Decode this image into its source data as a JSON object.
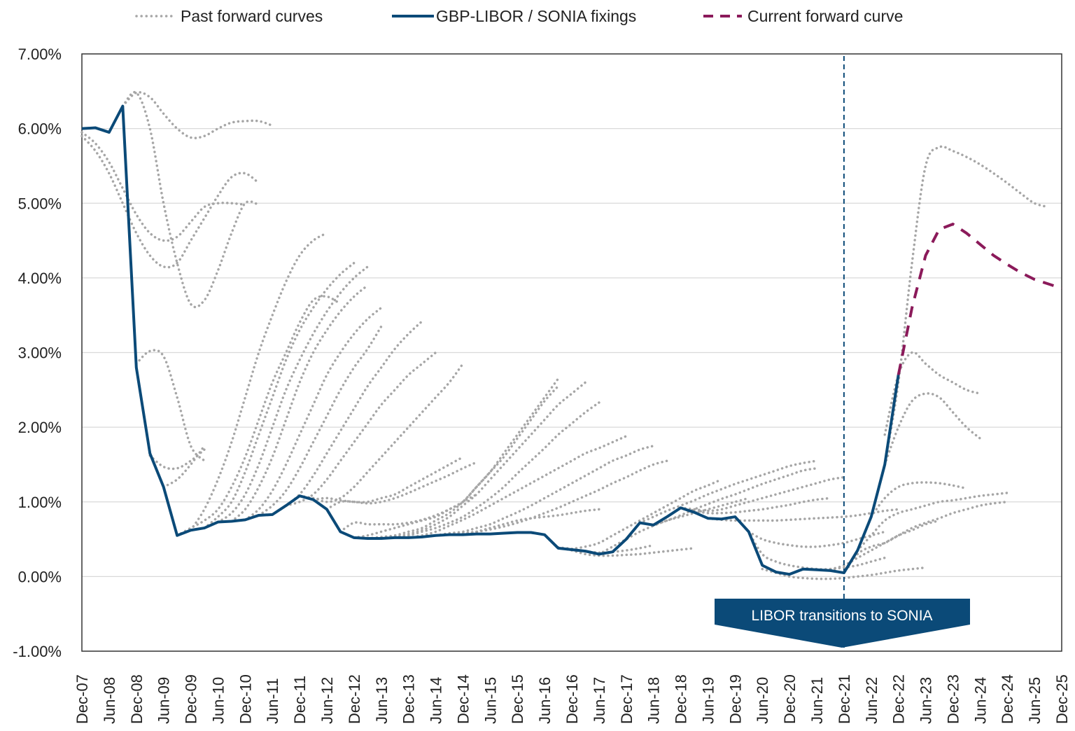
{
  "chart_data": {
    "type": "line",
    "title": "",
    "xlabel": "",
    "ylabel": "",
    "ylim": [
      -1.0,
      7.0
    ],
    "xlim": [
      "2007-12",
      "2025-12"
    ],
    "y_ticks": [
      "-1.00%",
      "0.00%",
      "1.00%",
      "2.00%",
      "3.00%",
      "4.00%",
      "5.00%",
      "6.00%",
      "7.00%"
    ],
    "x_ticks": [
      "Dec-07",
      "Jun-08",
      "Dec-08",
      "Jun-09",
      "Dec-09",
      "Jun-10",
      "Dec-10",
      "Jun-11",
      "Dec-11",
      "Jun-12",
      "Dec-12",
      "Jun-13",
      "Dec-13",
      "Jun-14",
      "Dec-14",
      "Jun-15",
      "Dec-15",
      "Jun-16",
      "Dec-16",
      "Jun-17",
      "Dec-17",
      "Jun-18",
      "Dec-18",
      "Jun-19",
      "Dec-19",
      "Jun-20",
      "Dec-20",
      "Jun-21",
      "Dec-21",
      "Jun-22",
      "Dec-22",
      "Jun-23",
      "Dec-23",
      "Jun-24",
      "Dec-24",
      "Jun-25",
      "Dec-25"
    ],
    "grid": "horizontal",
    "legend_position": "top",
    "legend": [
      "Past forward curves",
      "GBP-LIBOR / SONIA fixings",
      "Current forward curve"
    ],
    "colors": {
      "fixings": "#0b4a78",
      "current": "#8b1a5a",
      "past": "#a6a6a6",
      "annotation": "#0b4a78"
    },
    "frequency": "quarterly",
    "fixings": {
      "name": "GBP-LIBOR / SONIA fixings",
      "start": "2007-12",
      "values": [
        6.0,
        6.01,
        5.95,
        6.3,
        2.8,
        1.65,
        1.2,
        0.55,
        0.62,
        0.65,
        0.73,
        0.74,
        0.76,
        0.82,
        0.83,
        0.95,
        1.08,
        1.03,
        0.9,
        0.6,
        0.52,
        0.51,
        0.51,
        0.52,
        0.52,
        0.53,
        0.55,
        0.56,
        0.56,
        0.57,
        0.57,
        0.58,
        0.59,
        0.59,
        0.56,
        0.38,
        0.36,
        0.34,
        0.3,
        0.33,
        0.5,
        0.72,
        0.69,
        0.8,
        0.92,
        0.86,
        0.78,
        0.77,
        0.8,
        0.6,
        0.15,
        0.06,
        0.03,
        0.1,
        0.09,
        0.08,
        0.05,
        0.35,
        0.8,
        1.5,
        2.7
      ]
    },
    "current_forward": {
      "name": "Current forward curve",
      "start": "2022-12",
      "values": [
        2.7,
        3.6,
        4.3,
        4.65,
        4.72,
        4.6,
        4.45,
        4.3,
        4.18,
        4.07,
        3.98,
        3.92,
        3.86
      ]
    },
    "past_forwards": [
      {
        "start": "2007-12",
        "values": [
          5.95,
          5.8,
          5.55,
          5.2,
          4.85,
          4.6,
          4.5,
          4.55,
          4.75,
          4.95,
          5.0,
          5.0,
          4.98
        ]
      },
      {
        "start": "2007-12",
        "values": [
          5.9,
          5.7,
          5.4,
          5.0,
          4.6,
          4.3,
          4.15,
          4.2,
          4.5,
          4.8,
          5.1,
          5.35,
          5.4,
          5.27
        ]
      },
      {
        "start": "2008-09",
        "values": [
          6.3,
          6.48,
          6.42,
          6.2,
          6.0,
          5.88,
          5.9,
          6.0,
          6.08,
          6.1,
          6.1,
          6.04
        ]
      },
      {
        "start": "2008-09",
        "values": [
          6.3,
          6.48,
          6.0,
          5.0,
          4.2,
          3.65,
          3.7,
          4.1,
          4.6,
          5.0,
          4.98
        ]
      },
      {
        "start": "2008-12",
        "values": [
          2.85,
          3.02,
          2.95,
          2.4,
          1.75,
          1.55
        ]
      },
      {
        "start": "2009-03",
        "values": [
          1.62,
          1.47,
          1.45,
          1.55,
          1.7
        ]
      },
      {
        "start": "2009-06",
        "values": [
          1.2,
          1.3,
          1.5,
          1.75
        ]
      },
      {
        "start": "2009-09",
        "values": [
          0.55,
          0.65,
          0.75,
          0.9,
          1.2,
          1.6,
          2.1,
          2.6,
          3.0,
          3.4,
          3.7,
          3.75,
          3.65
        ]
      },
      {
        "start": "2009-12",
        "values": [
          0.62,
          0.9,
          1.3,
          1.8,
          2.4,
          3.0,
          3.5,
          3.95,
          4.3,
          4.5,
          4.6
        ]
      },
      {
        "start": "2010-03",
        "values": [
          0.65,
          0.8,
          1.0,
          1.4,
          1.9,
          2.4,
          2.9,
          3.3,
          3.6,
          3.85,
          4.05,
          4.2
        ]
      },
      {
        "start": "2010-06",
        "values": [
          0.73,
          0.85,
          1.1,
          1.5,
          2.0,
          2.5,
          2.9,
          3.25,
          3.55,
          3.8,
          4.0,
          4.15
        ]
      },
      {
        "start": "2010-09",
        "values": [
          0.74,
          0.9,
          1.2,
          1.6,
          2.1,
          2.6,
          3.0,
          3.3,
          3.55,
          3.75,
          3.9
        ]
      },
      {
        "start": "2010-12",
        "values": [
          0.76,
          0.9,
          1.15,
          1.5,
          1.9,
          2.3,
          2.7,
          3.0,
          3.25,
          3.45,
          3.6
        ]
      },
      {
        "start": "2011-03",
        "values": [
          0.82,
          0.95,
          1.15,
          1.45,
          1.8,
          2.15,
          2.5,
          2.8,
          3.05,
          3.35
        ]
      },
      {
        "start": "2011-06",
        "values": [
          0.83,
          0.95,
          1.1,
          1.35,
          1.65,
          1.95,
          2.25,
          2.55,
          2.8,
          3.05,
          3.25,
          3.42
        ]
      },
      {
        "start": "2011-09",
        "values": [
          0.95,
          1.0,
          1.1,
          1.3,
          1.55,
          1.8,
          2.05,
          2.3,
          2.5,
          2.7,
          2.85,
          3.0
        ]
      },
      {
        "start": "2011-12",
        "values": [
          1.08,
          1.05,
          1.0,
          1.05,
          1.2,
          1.4,
          1.6,
          1.8,
          2.0,
          2.2,
          2.4,
          2.6,
          2.85
        ]
      },
      {
        "start": "2012-03",
        "values": [
          1.03,
          1.05,
          1.02,
          1.0,
          1.0,
          1.05,
          1.1,
          1.2,
          1.3,
          1.4,
          1.5,
          1.6
        ]
      },
      {
        "start": "2012-06",
        "values": [
          0.9,
          1.0,
          1.0,
          0.98,
          1.0,
          1.05,
          1.12,
          1.2,
          1.28,
          1.36,
          1.45,
          1.53
        ]
      },
      {
        "start": "2012-09",
        "values": [
          0.6,
          0.72,
          0.7,
          0.7,
          0.7,
          0.72,
          0.76,
          0.82,
          0.9,
          1.0,
          1.1
        ]
      },
      {
        "start": "2012-12",
        "values": [
          0.52,
          0.55,
          0.6,
          0.65,
          0.7,
          0.75,
          0.8,
          0.9,
          1.0,
          1.2,
          1.4,
          1.6,
          1.85,
          2.1,
          2.35,
          2.55
        ]
      },
      {
        "start": "2013-03",
        "values": [
          0.51,
          0.53,
          0.55,
          0.6,
          0.65,
          0.75,
          0.85,
          1.0,
          1.2,
          1.4,
          1.65,
          1.9,
          2.15,
          2.4,
          2.65
        ]
      },
      {
        "start": "2013-06",
        "values": [
          0.51,
          0.53,
          0.57,
          0.62,
          0.7,
          0.8,
          0.95,
          1.1,
          1.3,
          1.5,
          1.7,
          1.9,
          2.1,
          2.3,
          2.45,
          2.6
        ]
      },
      {
        "start": "2013-09",
        "values": [
          0.52,
          0.55,
          0.6,
          0.65,
          0.72,
          0.8,
          0.92,
          1.05,
          1.2,
          1.38,
          1.55,
          1.72,
          1.9,
          2.05,
          2.2,
          2.33
        ]
      },
      {
        "start": "2013-12",
        "values": [
          0.52,
          0.55,
          0.6,
          0.68,
          0.76,
          0.85,
          0.95,
          1.05,
          1.15,
          1.25,
          1.35,
          1.45,
          1.55,
          1.65,
          1.72,
          1.8,
          1.88
        ]
      },
      {
        "start": "2014-03",
        "values": [
          0.53,
          0.55,
          0.58,
          0.6,
          0.65,
          0.7,
          0.78,
          0.86,
          0.95,
          1.05,
          1.15,
          1.25,
          1.35,
          1.45,
          1.55,
          1.62,
          1.7,
          1.75
        ]
      },
      {
        "start": "2014-09",
        "values": [
          0.56,
          0.58,
          0.6,
          0.63,
          0.67,
          0.72,
          0.78,
          0.85,
          0.92,
          1.0,
          1.08,
          1.16,
          1.25,
          1.33,
          1.42,
          1.5,
          1.55
        ]
      },
      {
        "start": "2014-12",
        "values": [
          0.56,
          0.6,
          0.65,
          0.7,
          0.75,
          0.78,
          0.8,
          0.82,
          0.85,
          0.88,
          0.9
        ]
      },
      {
        "start": "2016-09",
        "values": [
          0.39,
          0.35,
          0.3,
          0.28,
          0.28,
          0.29,
          0.3,
          0.32,
          0.34,
          0.36,
          0.38
        ]
      },
      {
        "start": "2016-09",
        "values": [
          0.39,
          0.37,
          0.34,
          0.32,
          0.33,
          0.35,
          0.38,
          0.42
        ]
      },
      {
        "start": "2016-12",
        "values": [
          0.37,
          0.4,
          0.45,
          0.55,
          0.65,
          0.75,
          0.85,
          0.95,
          1.05,
          1.15,
          1.22,
          1.3
        ]
      },
      {
        "start": "2017-06",
        "values": [
          0.3,
          0.4,
          0.5,
          0.6,
          0.68,
          0.75,
          0.8,
          0.85,
          0.9,
          0.95,
          1.0,
          1.05
        ]
      },
      {
        "start": "2018-03",
        "values": [
          0.72,
          0.8,
          0.88,
          0.95,
          1.02,
          1.1,
          1.17,
          1.24,
          1.3,
          1.36,
          1.42,
          1.48,
          1.52,
          1.55
        ]
      },
      {
        "start": "2018-06",
        "values": [
          0.69,
          0.75,
          0.82,
          0.9,
          0.97,
          1.04,
          1.1,
          1.17,
          1.24,
          1.3,
          1.36,
          1.42,
          1.45
        ]
      },
      {
        "start": "2018-12",
        "values": [
          0.92,
          0.9,
          0.88,
          0.9,
          0.95,
          1.0,
          1.05,
          1.1,
          1.15,
          1.2,
          1.25,
          1.3,
          1.33
        ]
      },
      {
        "start": "2018-12",
        "values": [
          0.92,
          0.88,
          0.85,
          0.85,
          0.86,
          0.88,
          0.9,
          0.93,
          0.96,
          1.0,
          1.03,
          1.05
        ]
      },
      {
        "start": "2019-06",
        "values": [
          0.78,
          0.76,
          0.75,
          0.75,
          0.75,
          0.75,
          0.76,
          0.77,
          0.78,
          0.79,
          0.8,
          0.82,
          0.85,
          0.88,
          0.9
        ]
      },
      {
        "start": "2020-03",
        "values": [
          0.6,
          0.5,
          0.45,
          0.42,
          0.4,
          0.4,
          0.42,
          0.45,
          0.5,
          0.55,
          0.6
        ]
      },
      {
        "start": "2020-03",
        "values": [
          0.6,
          0.3,
          0.2,
          0.15,
          0.12,
          0.1,
          0.1,
          0.12,
          0.15,
          0.2,
          0.25
        ]
      },
      {
        "start": "2020-06",
        "values": [
          0.1,
          0.05,
          0.0,
          -0.02,
          -0.03,
          -0.03,
          -0.02,
          0.0,
          0.02,
          0.05,
          0.08,
          0.1,
          0.12
        ]
      },
      {
        "start": "2021-06",
        "values": [
          0.09,
          0.1,
          0.15,
          0.25,
          0.35,
          0.45,
          0.55,
          0.62,
          0.7,
          0.75
        ]
      },
      {
        "start": "2021-12",
        "values": [
          0.05,
          0.3,
          0.4,
          0.45,
          0.55,
          0.65,
          0.72,
          0.78,
          0.85,
          0.9,
          0.95,
          0.98,
          1.0
        ]
      },
      {
        "start": "2022-03",
        "values": [
          0.35,
          0.55,
          0.75,
          0.85,
          0.9,
          0.95,
          1.0,
          1.02,
          1.05,
          1.08,
          1.1,
          1.12
        ]
      },
      {
        "start": "2022-06",
        "values": [
          0.8,
          1.05,
          1.2,
          1.25,
          1.26,
          1.25,
          1.22,
          1.18
        ]
      },
      {
        "start": "2022-09",
        "values": [
          1.5,
          2.0,
          2.35,
          2.45,
          2.4,
          2.2,
          2.0,
          1.85
        ]
      },
      {
        "start": "2022-09",
        "values": [
          1.9,
          2.7,
          3.0,
          2.85,
          2.7,
          2.6,
          2.5,
          2.45
        ]
      },
      {
        "start": "2022-09",
        "values": [
          1.5,
          2.6,
          4.2,
          5.5,
          5.75,
          5.7,
          5.62,
          5.52,
          5.4,
          5.27,
          5.13,
          5.0,
          4.95
        ]
      }
    ],
    "annotations": [
      {
        "text": "LIBOR transitions to SONIA",
        "x": "2021-12",
        "style": "vertical dashed line"
      }
    ]
  }
}
